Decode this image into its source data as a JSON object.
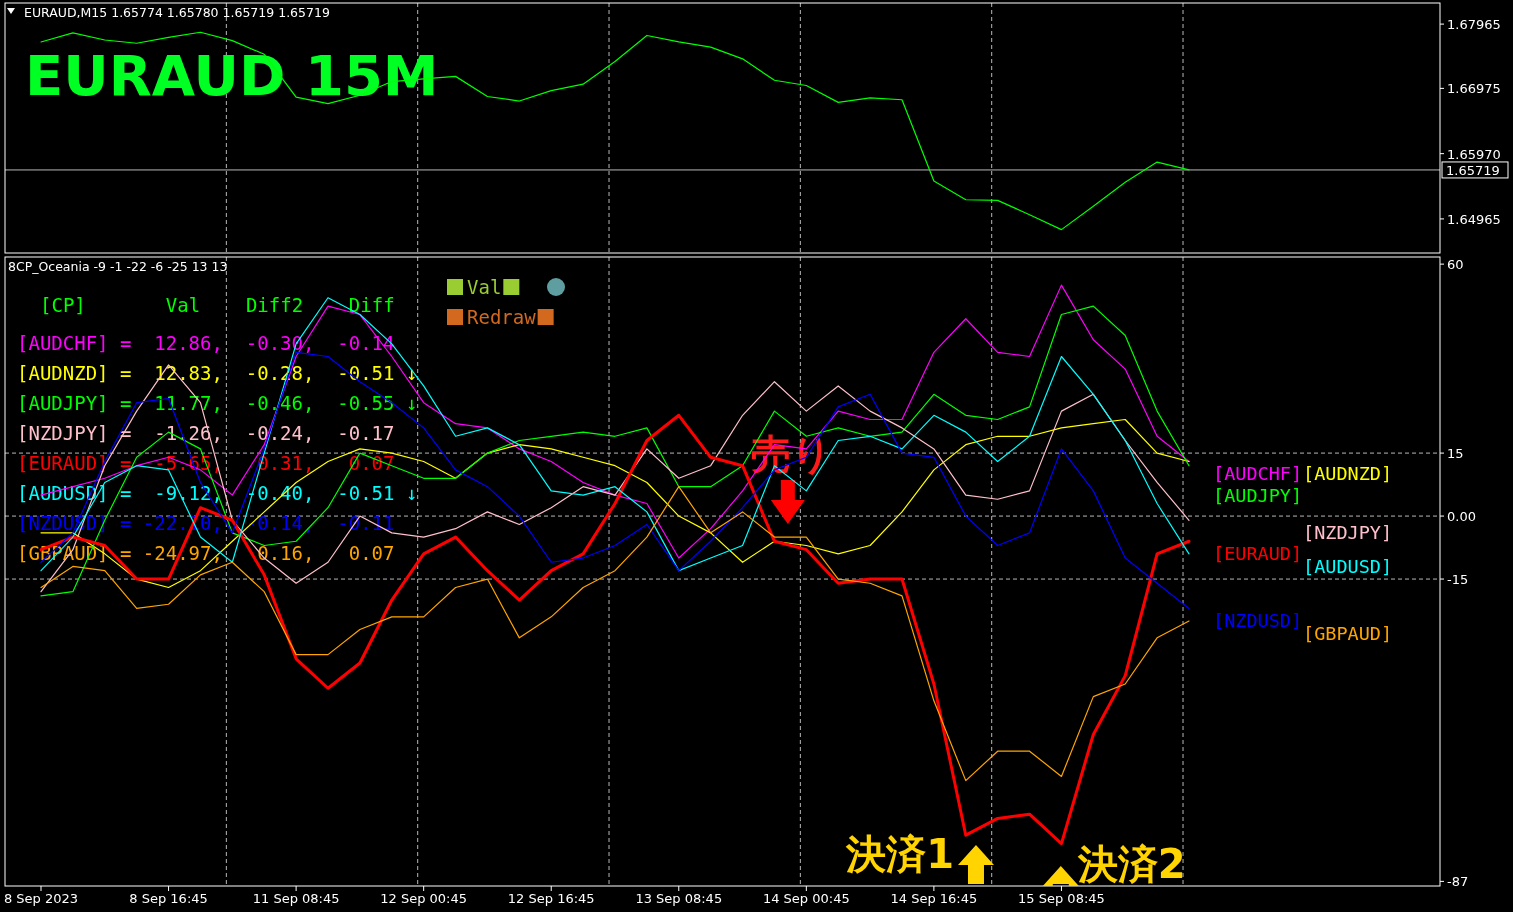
{
  "chart_data": [
    {
      "type": "line",
      "title": "EURAUD,M15 1.65774 1.65780 1.65719 1.65719",
      "annotations": [
        "EURAUD 15M"
      ],
      "color": "#00ff00",
      "grid": "x",
      "categories": [
        null,
        null,
        null,
        null,
        null,
        null,
        null,
        null,
        null,
        null,
        null,
        null,
        null,
        null,
        null,
        null,
        null,
        null,
        null,
        null,
        null,
        null,
        null,
        null,
        null,
        null,
        null,
        null,
        null,
        null,
        null,
        null,
        null,
        null,
        null,
        null,
        null
      ],
      "values": [
        1.6769,
        1.6783,
        1.6772,
        1.6767,
        1.6776,
        1.6784,
        1.6771,
        1.675,
        1.6684,
        1.6674,
        1.6687,
        1.6708,
        1.6712,
        1.6716,
        1.6685,
        1.6678,
        1.6694,
        1.6704,
        1.6739,
        1.6779,
        1.6769,
        1.6761,
        1.6743,
        1.671,
        1.6702,
        1.6676,
        1.6683,
        1.668,
        1.6555,
        1.6526,
        1.6525,
        1.6503,
        1.648,
        1.6516,
        1.6553,
        1.6584,
        1.6572
      ],
      "ylim": [
        1.6444,
        1.6829
      ],
      "yticks": [
        1.67965,
        1.66975,
        {
          "value": 1.6597,
          "label": "1.65970"
        },
        1.64965
      ],
      "ref_lines": [
        {
          "axis": "y",
          "value": 1.65719,
          "label": "1.65719"
        }
      ]
    },
    {
      "type": "line",
      "title": "8CP_Oceania -9 -1 -22 -6 -25 13 13",
      "grid": "x",
      "categories": [
        "8 Sep 2023",
        null,
        null,
        null,
        "8 Sep 16:45",
        null,
        null,
        null,
        "11 Sep 08:45",
        null,
        null,
        null,
        "12 Sep 00:45",
        null,
        null,
        null,
        "12 Sep 16:45",
        null,
        null,
        null,
        "13 Sep 08:45",
        null,
        null,
        null,
        "14 Sep 00:45",
        null,
        null,
        null,
        "14 Sep 16:45",
        null,
        null,
        null,
        "15 Sep 08:45",
        null,
        null,
        null,
        null
      ],
      "ylim": [
        -88.1,
        61.7
      ],
      "yticks": [
        60,
        15,
        {
          "value": 0,
          "label": "0.00"
        },
        -15,
        -87
      ],
      "ref_lines": [
        {
          "axis": "y",
          "value": 15,
          "line_style": "dashed"
        },
        {
          "axis": "y",
          "value": 0,
          "line_style": "dashed"
        },
        {
          "axis": "y",
          "value": -15,
          "line_style": "dashed"
        }
      ],
      "annotations": [
        "[CP]       Val    Diff2    Diff",
        "[AUDCHF] =  12.86,  -0.30,  -0.14",
        "[AUDNZD] =  12.83,  -0.28,  -0.51 ↓",
        "[AUDJPY] =  11.77,  -0.46,  -0.55 ↓",
        "[NZDJPY] =  -1.26,  -0.24,  -0.17",
        "[EURAUD] =  -5.65,   0.31,   0.07",
        "[AUDUSD] =  -9.12,  -0.40,  -0.51 ↓",
        "[NZDUSD] = -22.10,  -0.14,  -0.11",
        "[GBPAUD] = -24.97,   0.16,   0.07",
        "Val",
        "Redraw",
        "売り",
        "決済1",
        "決済2"
      ],
      "series": [
        {
          "name": "[AUDCHF]",
          "color": "#ff00ff",
          "values": [
            5,
            7,
            9,
            12,
            14,
            11,
            5,
            17,
            38,
            50,
            48,
            38,
            27,
            22,
            21,
            16,
            13,
            8,
            5,
            3,
            -10,
            -3,
            6,
            17,
            16,
            25,
            23,
            23,
            39,
            47,
            39,
            38,
            55,
            42,
            35,
            19,
            13
          ]
        },
        {
          "name": "[AUDNZD]",
          "color": "#ffff00",
          "values": [
            -4,
            -4,
            -9,
            -15,
            -17,
            -13,
            -6,
            1,
            8,
            13,
            16,
            15,
            13,
            9,
            15,
            17,
            16,
            14,
            12,
            8,
            0,
            -4,
            -11,
            -6,
            -7,
            -9,
            -7,
            1,
            11,
            17,
            19,
            19,
            21,
            22,
            23,
            15,
            13
          ]
        },
        {
          "name": "[AUDJPY]",
          "color": "#00ff00",
          "values": [
            -19,
            -18,
            -1,
            14,
            20,
            16,
            -4,
            -7,
            -6,
            2,
            15,
            12,
            9,
            9,
            15,
            18,
            19,
            20,
            19,
            21,
            7,
            7,
            12,
            25,
            19,
            21,
            19,
            20,
            29,
            24,
            23,
            26,
            48,
            50,
            43,
            25,
            12
          ]
        },
        {
          "name": "[NZDJPY]",
          "color": "#ffc0cb",
          "values": [
            -18,
            -8,
            12,
            25,
            36,
            27,
            -1,
            -10,
            -16,
            -11,
            0,
            -4,
            -5,
            -3,
            1,
            -2,
            2,
            7,
            5,
            16,
            9,
            12,
            24,
            32,
            25,
            31,
            25,
            21,
            16,
            5,
            4,
            6,
            25,
            29,
            18,
            8,
            -1
          ]
        },
        {
          "name": "[EURAUD]",
          "color": "#ff0000",
          "values": [
            -8,
            -5,
            -7,
            -15,
            -15,
            2,
            -1,
            -14,
            -34,
            -41,
            -35,
            -20,
            -9,
            -5,
            -13,
            -20,
            -13,
            -9,
            3,
            18,
            24,
            14,
            12,
            -6,
            -8,
            -16,
            -15,
            -15,
            -40,
            -76,
            -72,
            -71,
            -78,
            -52,
            -38,
            -9,
            -6
          ]
        },
        {
          "name": "[AUDUSD]",
          "color": "#00ffff",
          "values": [
            -13,
            -5,
            8,
            12,
            11,
            -5,
            -11,
            15,
            41,
            52,
            48,
            41,
            31,
            19,
            21,
            17,
            6,
            5,
            7,
            1,
            -13,
            -10,
            -7,
            12,
            6,
            18,
            19,
            16,
            24,
            20,
            13,
            19,
            38,
            29,
            18,
            3,
            -9
          ]
        },
        {
          "name": "[NZDUSD]",
          "color": "#0000ff",
          "values": [
            -11,
            -4,
            13,
            27,
            28,
            8,
            -4,
            16,
            39,
            38,
            32,
            27,
            21,
            11,
            7,
            0,
            -11,
            -10,
            -7,
            -2,
            -13,
            -6,
            2,
            11,
            14,
            26,
            29,
            15,
            14,
            0,
            -7,
            -4,
            16,
            6,
            -10,
            -16,
            -22
          ]
        },
        {
          "name": "[GBPAUD]",
          "color": "#ffa500",
          "values": [
            -17,
            -12,
            -13,
            -22,
            -21,
            -14,
            -11,
            -18,
            -33,
            -33,
            -27,
            -24,
            -24,
            -17,
            -15,
            -29,
            -24,
            -17,
            -13,
            -5,
            7,
            -4,
            1,
            -5,
            -5,
            -15,
            -16,
            -19,
            -44,
            -63,
            -56,
            -56,
            -62,
            -43,
            -40,
            -29,
            -25
          ]
        }
      ]
    }
  ]
}
